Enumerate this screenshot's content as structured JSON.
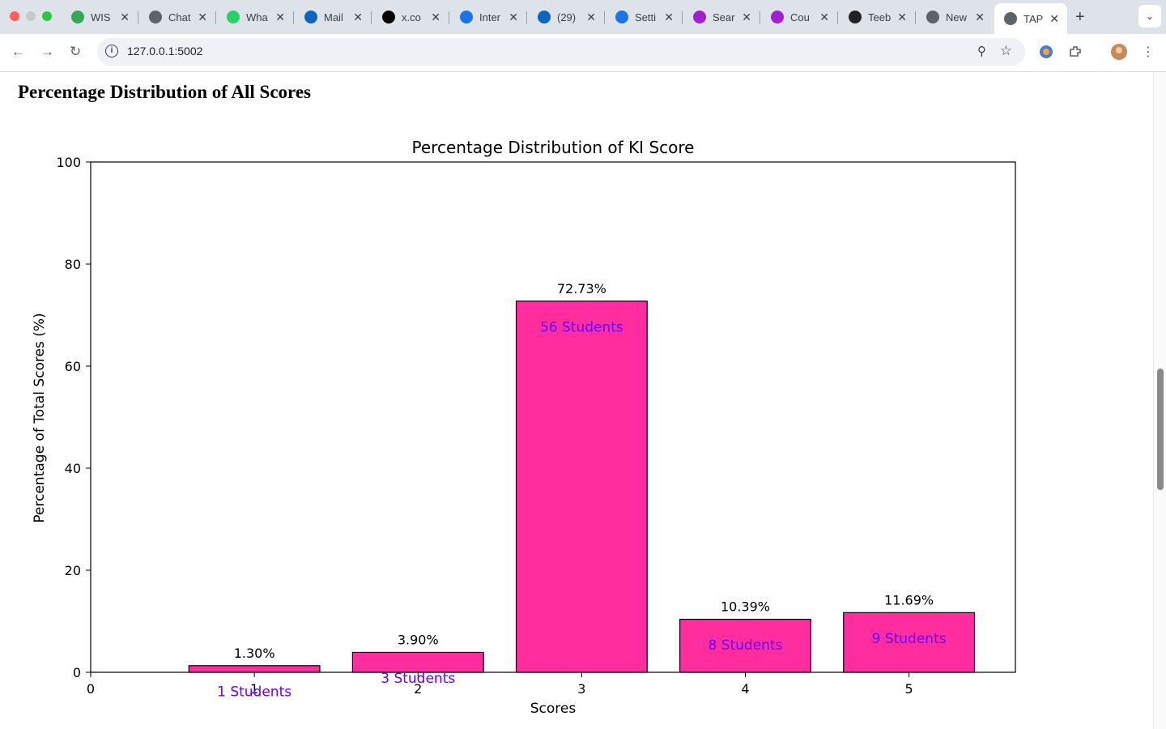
{
  "browser": {
    "tabs": [
      {
        "label": "WIS",
        "icon": "wisdom-icon",
        "color": "#34a853"
      },
      {
        "label": "Chat",
        "icon": "chatgpt-icon",
        "color": "#5f6368"
      },
      {
        "label": "Wha",
        "icon": "whatsapp-icon",
        "color": "#25d366"
      },
      {
        "label": "Mail",
        "icon": "outlook-icon",
        "color": "#0a66c2"
      },
      {
        "label": "x.co",
        "icon": "x-icon",
        "color": "#000000"
      },
      {
        "label": "Inter",
        "icon": "globe-icon",
        "color": "#1a73e8"
      },
      {
        "label": "(29)",
        "icon": "linkedin-icon",
        "color": "#0a66c2"
      },
      {
        "label": "Setti",
        "icon": "settings-gear-icon",
        "color": "#1a73e8"
      },
      {
        "label": "Sear",
        "icon": "search-site-icon",
        "color": "#a01fd0"
      },
      {
        "label": "Cou",
        "icon": "course-site-icon",
        "color": "#a01fd0"
      },
      {
        "label": "Teeb",
        "icon": "github-icon",
        "color": "#202124"
      },
      {
        "label": "New",
        "icon": "chrome-icon",
        "color": "#5f6368"
      },
      {
        "label": "TAP",
        "icon": "globe-icon",
        "color": "#5f6368",
        "active": true
      }
    ],
    "url": "127.0.0.1:5002"
  },
  "page": {
    "heading": "Percentage Distribution of All Scores"
  },
  "chart_data": {
    "type": "bar",
    "title": "Percentage Distribution of KI Score",
    "xlabel": "Scores",
    "ylabel": "Percentage of Total Scores (%)",
    "categories": [
      1,
      2,
      3,
      4,
      5
    ],
    "values": [
      1.3,
      3.9,
      72.73,
      10.39,
      11.69
    ],
    "value_labels": [
      "1.30%",
      "3.90%",
      "72.73%",
      "10.39%",
      "11.69%"
    ],
    "count_labels": [
      "1 Students",
      "3 Students",
      "56 Students",
      "8 Students",
      "9 Students"
    ],
    "xlim": [
      0,
      5.65
    ],
    "ylim": [
      0,
      100
    ],
    "xticks": [
      0,
      1,
      2,
      3,
      4,
      5
    ],
    "yticks": [
      0,
      20,
      40,
      60,
      80,
      100
    ],
    "bar_color": "#ff2d9e",
    "count_label_color": "#6600ff",
    "grid": false
  }
}
